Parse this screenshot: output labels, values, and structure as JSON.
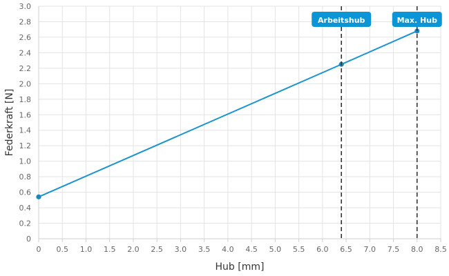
{
  "chart_data": {
    "type": "line",
    "xlabel": "Hub [mm]",
    "ylabel": "Federkraft [N]",
    "xlim": [
      0,
      8.5
    ],
    "ylim": [
      0,
      3.0
    ],
    "x_ticks": [
      "0",
      "0.5",
      "1.0",
      "1.5",
      "2.0",
      "2.5",
      "3.0",
      "3.5",
      "4.0",
      "4.5",
      "5.0",
      "5.5",
      "6.0",
      "6.5",
      "7.0",
      "7.5",
      "8.0",
      "8.5"
    ],
    "x_tick_values": [
      0,
      0.5,
      1.0,
      1.5,
      2.0,
      2.5,
      3.0,
      3.5,
      4.0,
      4.5,
      5.0,
      5.5,
      6.0,
      6.5,
      7.0,
      7.5,
      8.0,
      8.5
    ],
    "y_ticks": [
      "0",
      "0.2",
      "0.4",
      "0.6",
      "0.8",
      "1.0",
      "1.2",
      "1.4",
      "1.6",
      "1.8",
      "2.0",
      "2.2",
      "2.4",
      "2.6",
      "2.8",
      "3.0"
    ],
    "y_tick_values": [
      0,
      0.2,
      0.4,
      0.6,
      0.8,
      1.0,
      1.2,
      1.4,
      1.6,
      1.8,
      2.0,
      2.2,
      2.4,
      2.6,
      2.8,
      3.0
    ],
    "grid": true,
    "series": [
      {
        "x": [
          0,
          6.4,
          8.0
        ],
        "y": [
          0.54,
          2.25,
          2.68
        ],
        "color": "#1a93d1"
      }
    ],
    "markers": [
      {
        "x": 6.4,
        "label": "Arbeitshub"
      },
      {
        "x": 8.0,
        "label": "Max. Hub"
      }
    ],
    "colors": {
      "marker_badge": "#0b95d6",
      "marker_line": "#333333",
      "grid": "#e3e3e3"
    }
  }
}
